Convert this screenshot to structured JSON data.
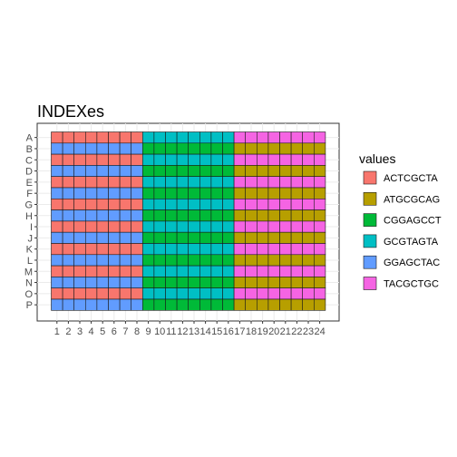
{
  "chart_data": {
    "type": "heatmap",
    "title": "INDEXes",
    "x_categories": [
      "1",
      "2",
      "3",
      "4",
      "5",
      "6",
      "7",
      "8",
      "9",
      "10",
      "11",
      "12",
      "13",
      "14",
      "15",
      "16",
      "17",
      "18",
      "19",
      "20",
      "21",
      "22",
      "23",
      "24"
    ],
    "y_categories": [
      "A",
      "B",
      "C",
      "D",
      "E",
      "F",
      "G",
      "H",
      "I",
      "J",
      "K",
      "L",
      "M",
      "N",
      "O",
      "P"
    ],
    "legend_title": "values",
    "legend": [
      {
        "label": "ACTCGCTA",
        "color": "#F8766D"
      },
      {
        "label": "ATGCGCAG",
        "color": "#B79F00"
      },
      {
        "label": "CGGAGCCT",
        "color": "#00BA38"
      },
      {
        "label": "GCGTAGTA",
        "color": "#00BFC4"
      },
      {
        "label": "GGAGCTAC",
        "color": "#619CFF"
      },
      {
        "label": "TACGCTGC",
        "color": "#F564E3"
      }
    ],
    "grid": true,
    "legend_position": "right",
    "cells_rule": "columns 1-8: odd rows ACTCGCTA, even rows GGAGCTAC; columns 9-16: odd rows GCGTAGTA, even rows CGGAGCCT; columns 17-24: odd rows TACGCTGC, even rows ATGCGCAG",
    "blocks": [
      {
        "columns": [
          1,
          8
        ],
        "odd_rows": "ACTCGCTA",
        "even_rows": "GGAGCTAC"
      },
      {
        "columns": [
          9,
          16
        ],
        "odd_rows": "GCGTAGTA",
        "even_rows": "CGGAGCCT"
      },
      {
        "columns": [
          17,
          24
        ],
        "odd_rows": "TACGCTGC",
        "even_rows": "ATGCGCAG"
      }
    ]
  }
}
